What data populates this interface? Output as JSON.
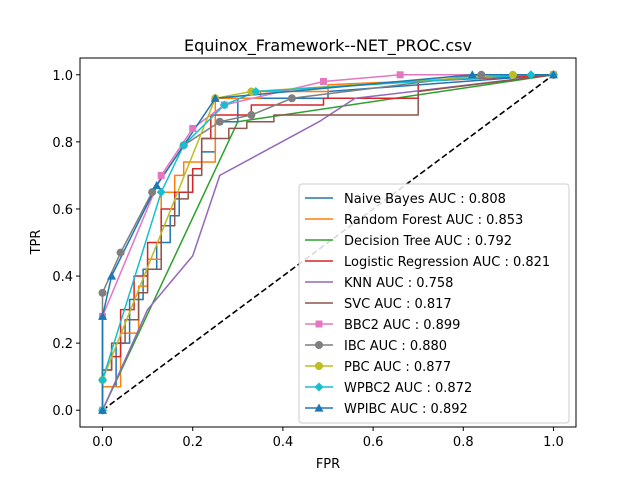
{
  "chart_data": {
    "type": "line",
    "title": "Equinox_Framework--NET_PROC.csv",
    "xlabel": "FPR",
    "ylabel": "TPR",
    "xlim": [
      -0.05,
      1.05
    ],
    "ylim": [
      -0.05,
      1.05
    ],
    "xticks": [
      "0.0",
      "0.2",
      "0.4",
      "0.6",
      "0.8",
      "1.0"
    ],
    "yticks": [
      "0.0",
      "0.2",
      "0.4",
      "0.6",
      "0.8",
      "1.0"
    ],
    "grid": false,
    "legend_position": "lower-right",
    "diagonal": {
      "x": [
        0,
        1
      ],
      "y": [
        0,
        1
      ],
      "color": "#000000",
      "style": "dashed"
    },
    "series": [
      {
        "name": "Naive Bayes AUC : 0.808",
        "color": "#1f77b4",
        "marker": "none",
        "step": true,
        "x": [
          0,
          0,
          0.03,
          0.03,
          0.06,
          0.06,
          0.09,
          0.09,
          0.12,
          0.12,
          0.15,
          0.15,
          0.17,
          0.17,
          0.2,
          0.2,
          0.22,
          0.22,
          0.25,
          0.25,
          0.3,
          0.3,
          0.5,
          0.5,
          1.0
        ],
        "y": [
          0,
          0.07,
          0.07,
          0.2,
          0.2,
          0.33,
          0.33,
          0.42,
          0.42,
          0.5,
          0.5,
          0.58,
          0.58,
          0.65,
          0.65,
          0.72,
          0.72,
          0.77,
          0.77,
          0.86,
          0.86,
          0.93,
          0.93,
          0.95,
          1.0
        ]
      },
      {
        "name": "Random Forest AUC : 0.853",
        "color": "#ff7f0e",
        "marker": "none",
        "step": true,
        "x": [
          0,
          0,
          0.04,
          0.04,
          0.08,
          0.08,
          0.1,
          0.1,
          0.13,
          0.13,
          0.16,
          0.16,
          0.18,
          0.18,
          0.25,
          0.25,
          0.35,
          0.35,
          0.5,
          0.5,
          1.0
        ],
        "y": [
          0,
          0.07,
          0.07,
          0.23,
          0.23,
          0.37,
          0.37,
          0.45,
          0.45,
          0.65,
          0.65,
          0.7,
          0.7,
          0.74,
          0.74,
          0.93,
          0.93,
          0.95,
          0.95,
          0.97,
          1.0
        ]
      },
      {
        "name": "Decision Tree AUC : 0.792",
        "color": "#2ca02c",
        "marker": "none",
        "step": false,
        "x": [
          0,
          0.3,
          1.0
        ],
        "y": [
          0,
          0.86,
          1.0
        ]
      },
      {
        "name": "Logistic Regression AUC : 0.821",
        "color": "#d62728",
        "marker": "none",
        "step": true,
        "x": [
          0,
          0,
          0.02,
          0.02,
          0.04,
          0.04,
          0.07,
          0.07,
          0.1,
          0.1,
          0.13,
          0.13,
          0.16,
          0.16,
          0.2,
          0.2,
          0.22,
          0.22,
          0.24,
          0.24,
          0.33,
          0.33,
          0.49,
          0.49,
          0.7,
          0.7,
          1.0
        ],
        "y": [
          0,
          0.12,
          0.12,
          0.16,
          0.16,
          0.3,
          0.3,
          0.4,
          0.4,
          0.5,
          0.5,
          0.6,
          0.6,
          0.65,
          0.65,
          0.72,
          0.72,
          0.81,
          0.81,
          0.88,
          0.88,
          0.91,
          0.91,
          0.93,
          0.93,
          0.98,
          1.0
        ]
      },
      {
        "name": "KNN AUC : 0.758",
        "color": "#9467bd",
        "marker": "none",
        "step": false,
        "x": [
          0,
          0.1,
          0.2,
          0.26,
          0.48,
          0.56,
          1.0
        ],
        "y": [
          0,
          0.3,
          0.46,
          0.7,
          0.86,
          0.93,
          1.0
        ]
      },
      {
        "name": "SVC AUC : 0.817",
        "color": "#8c564b",
        "marker": "none",
        "step": true,
        "x": [
          0,
          0,
          0.02,
          0.02,
          0.05,
          0.05,
          0.08,
          0.08,
          0.1,
          0.1,
          0.13,
          0.13,
          0.16,
          0.16,
          0.19,
          0.19,
          0.22,
          0.22,
          0.28,
          0.28,
          0.32,
          0.32,
          0.38,
          0.38,
          0.7,
          0.7,
          1.0
        ],
        "y": [
          0,
          0.12,
          0.12,
          0.2,
          0.2,
          0.27,
          0.27,
          0.35,
          0.35,
          0.42,
          0.42,
          0.55,
          0.55,
          0.63,
          0.63,
          0.7,
          0.7,
          0.81,
          0.81,
          0.84,
          0.84,
          0.86,
          0.86,
          0.88,
          0.88,
          0.95,
          1.0
        ]
      },
      {
        "name": "BBC2 AUC : 0.899",
        "color": "#e377c2",
        "marker": "square",
        "step": false,
        "x": [
          0,
          0,
          0.13,
          0.2,
          0.27,
          0.49,
          0.66,
          1.0
        ],
        "y": [
          0,
          0.28,
          0.7,
          0.84,
          0.91,
          0.98,
          1.0,
          1.0
        ]
      },
      {
        "name": "IBC AUC : 0.880",
        "color": "#7f7f7f",
        "marker": "circle",
        "step": false,
        "x": [
          0,
          0,
          0.04,
          0.11,
          0.18,
          0.26,
          0.33,
          0.42,
          0.84,
          1.0
        ],
        "y": [
          0,
          0.35,
          0.47,
          0.65,
          0.79,
          0.86,
          0.88,
          0.93,
          1.0,
          1.0
        ]
      },
      {
        "name": "PBC AUC : 0.877",
        "color": "#bcbd22",
        "marker": "circle",
        "step": false,
        "x": [
          0,
          0,
          0.25,
          0.33,
          0.91,
          1.0
        ],
        "y": [
          0,
          0.09,
          0.93,
          0.95,
          1.0,
          1.0
        ]
      },
      {
        "name": "WPBC2 AUC : 0.872",
        "color": "#17becf",
        "marker": "diamond",
        "step": false,
        "x": [
          0,
          0,
          0.13,
          0.18,
          0.27,
          0.34,
          0.95,
          1.0
        ],
        "y": [
          0,
          0.09,
          0.65,
          0.79,
          0.91,
          0.95,
          1.0,
          1.0
        ]
      },
      {
        "name": "WPIBC AUC : 0.892",
        "color": "#1f77b4",
        "marker": "triangle",
        "step": false,
        "x": [
          0,
          0,
          0.02,
          0.12,
          0.25,
          0.82,
          1.0
        ],
        "y": [
          0,
          0.28,
          0.4,
          0.67,
          0.93,
          1.0,
          1.0
        ]
      }
    ]
  }
}
